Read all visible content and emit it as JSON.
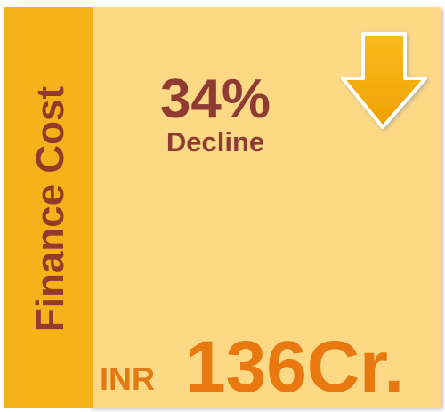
{
  "label": "Finance Cost",
  "change": {
    "value": "34%",
    "direction": "Decline"
  },
  "amount": {
    "currency": "INR",
    "value": "136Cr."
  }
}
